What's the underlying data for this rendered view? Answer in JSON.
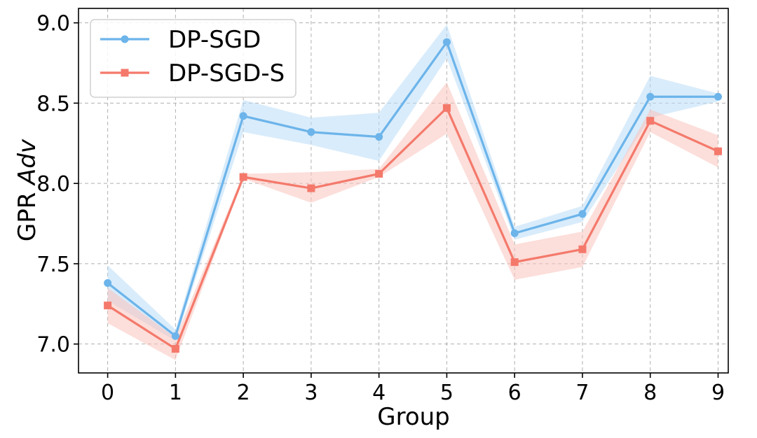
{
  "chart_data": {
    "type": "line",
    "title": "",
    "xlabel": "Group",
    "ylabel_prefix": "GPR ",
    "ylabel_italic": "Adv",
    "categories": [
      "0",
      "1",
      "2",
      "3",
      "4",
      "5",
      "6",
      "7",
      "8",
      "9"
    ],
    "x": [
      0,
      1,
      2,
      3,
      4,
      5,
      6,
      7,
      8,
      9
    ],
    "xlim": [
      -0.43,
      9.15
    ],
    "ylim": [
      6.82,
      9.09
    ],
    "yticks": [
      7.0,
      7.5,
      8.0,
      8.5,
      9.0
    ],
    "ytick_labels": [
      "7.0",
      "7.5",
      "8.0",
      "8.5",
      "9.0"
    ],
    "grid": true,
    "legend_position": "top-left",
    "series": [
      {
        "name": "DP-SGD",
        "color": "#6cb4ea",
        "band_color": "#b9dcf7",
        "marker": "circle",
        "values": [
          7.38,
          7.05,
          8.42,
          8.32,
          8.29,
          8.88,
          7.69,
          7.81,
          8.54,
          8.54
        ],
        "lower": [
          7.27,
          7.02,
          8.32,
          8.24,
          8.14,
          8.78,
          7.65,
          7.76,
          8.41,
          8.51
        ],
        "upper": [
          7.49,
          7.09,
          8.52,
          8.41,
          8.44,
          8.99,
          7.73,
          7.86,
          8.67,
          8.56
        ]
      },
      {
        "name": "DP-SGD-S",
        "color": "#f4796b",
        "band_color": "#f9c2bb",
        "marker": "square",
        "values": [
          7.24,
          6.97,
          8.04,
          7.97,
          8.06,
          8.47,
          7.51,
          7.59,
          8.39,
          8.2
        ],
        "lower": [
          7.13,
          6.9,
          8.03,
          7.88,
          8.04,
          8.31,
          7.4,
          7.48,
          8.32,
          8.1
        ],
        "upper": [
          7.35,
          7.04,
          8.06,
          8.07,
          8.09,
          8.63,
          7.62,
          7.7,
          8.46,
          8.3
        ]
      }
    ]
  }
}
